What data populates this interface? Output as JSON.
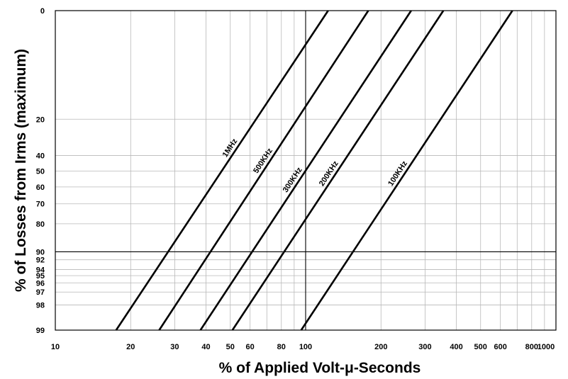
{
  "chart_data": {
    "type": "line",
    "xlabel": "% of Applied Volt-μ-Seconds",
    "ylabel": "% of Losses from Irms (maximum)",
    "x_scale": "log",
    "y_scale": "nonlinear",
    "xlim": [
      10,
      1000
    ],
    "ylim": [
      0,
      99
    ],
    "x_tick_labels": [
      "10",
      "20",
      "30",
      "40",
      "50",
      "60",
      "80",
      "100",
      "200",
      "300",
      "400",
      "500",
      "600",
      "800",
      "1000"
    ],
    "y_tick_labels": [
      "0",
      "20",
      "40",
      "50",
      "60",
      "70",
      "80",
      "90",
      "92",
      "94",
      "95",
      "96",
      "97",
      "98",
      "99"
    ],
    "grid": true,
    "reference_lines": {
      "x": 100,
      "y": 90
    },
    "series": [
      {
        "name": "1MHz",
        "x": [
          17.5,
          123
        ],
        "y": [
          99,
          0
        ]
      },
      {
        "name": "500KHz",
        "x": [
          26,
          178
        ],
        "y": [
          99,
          0
        ]
      },
      {
        "name": "300KHz",
        "x": [
          38,
          264
        ],
        "y": [
          99,
          0
        ]
      },
      {
        "name": "200KHz",
        "x": [
          51,
          355
        ],
        "y": [
          99,
          0
        ]
      },
      {
        "name": "100KHz",
        "x": [
          96,
          670
        ],
        "y": [
          99,
          0
        ]
      }
    ],
    "colors": {
      "line": "#000000",
      "grid": "#b8b8b8",
      "frame": "#000000"
    }
  }
}
